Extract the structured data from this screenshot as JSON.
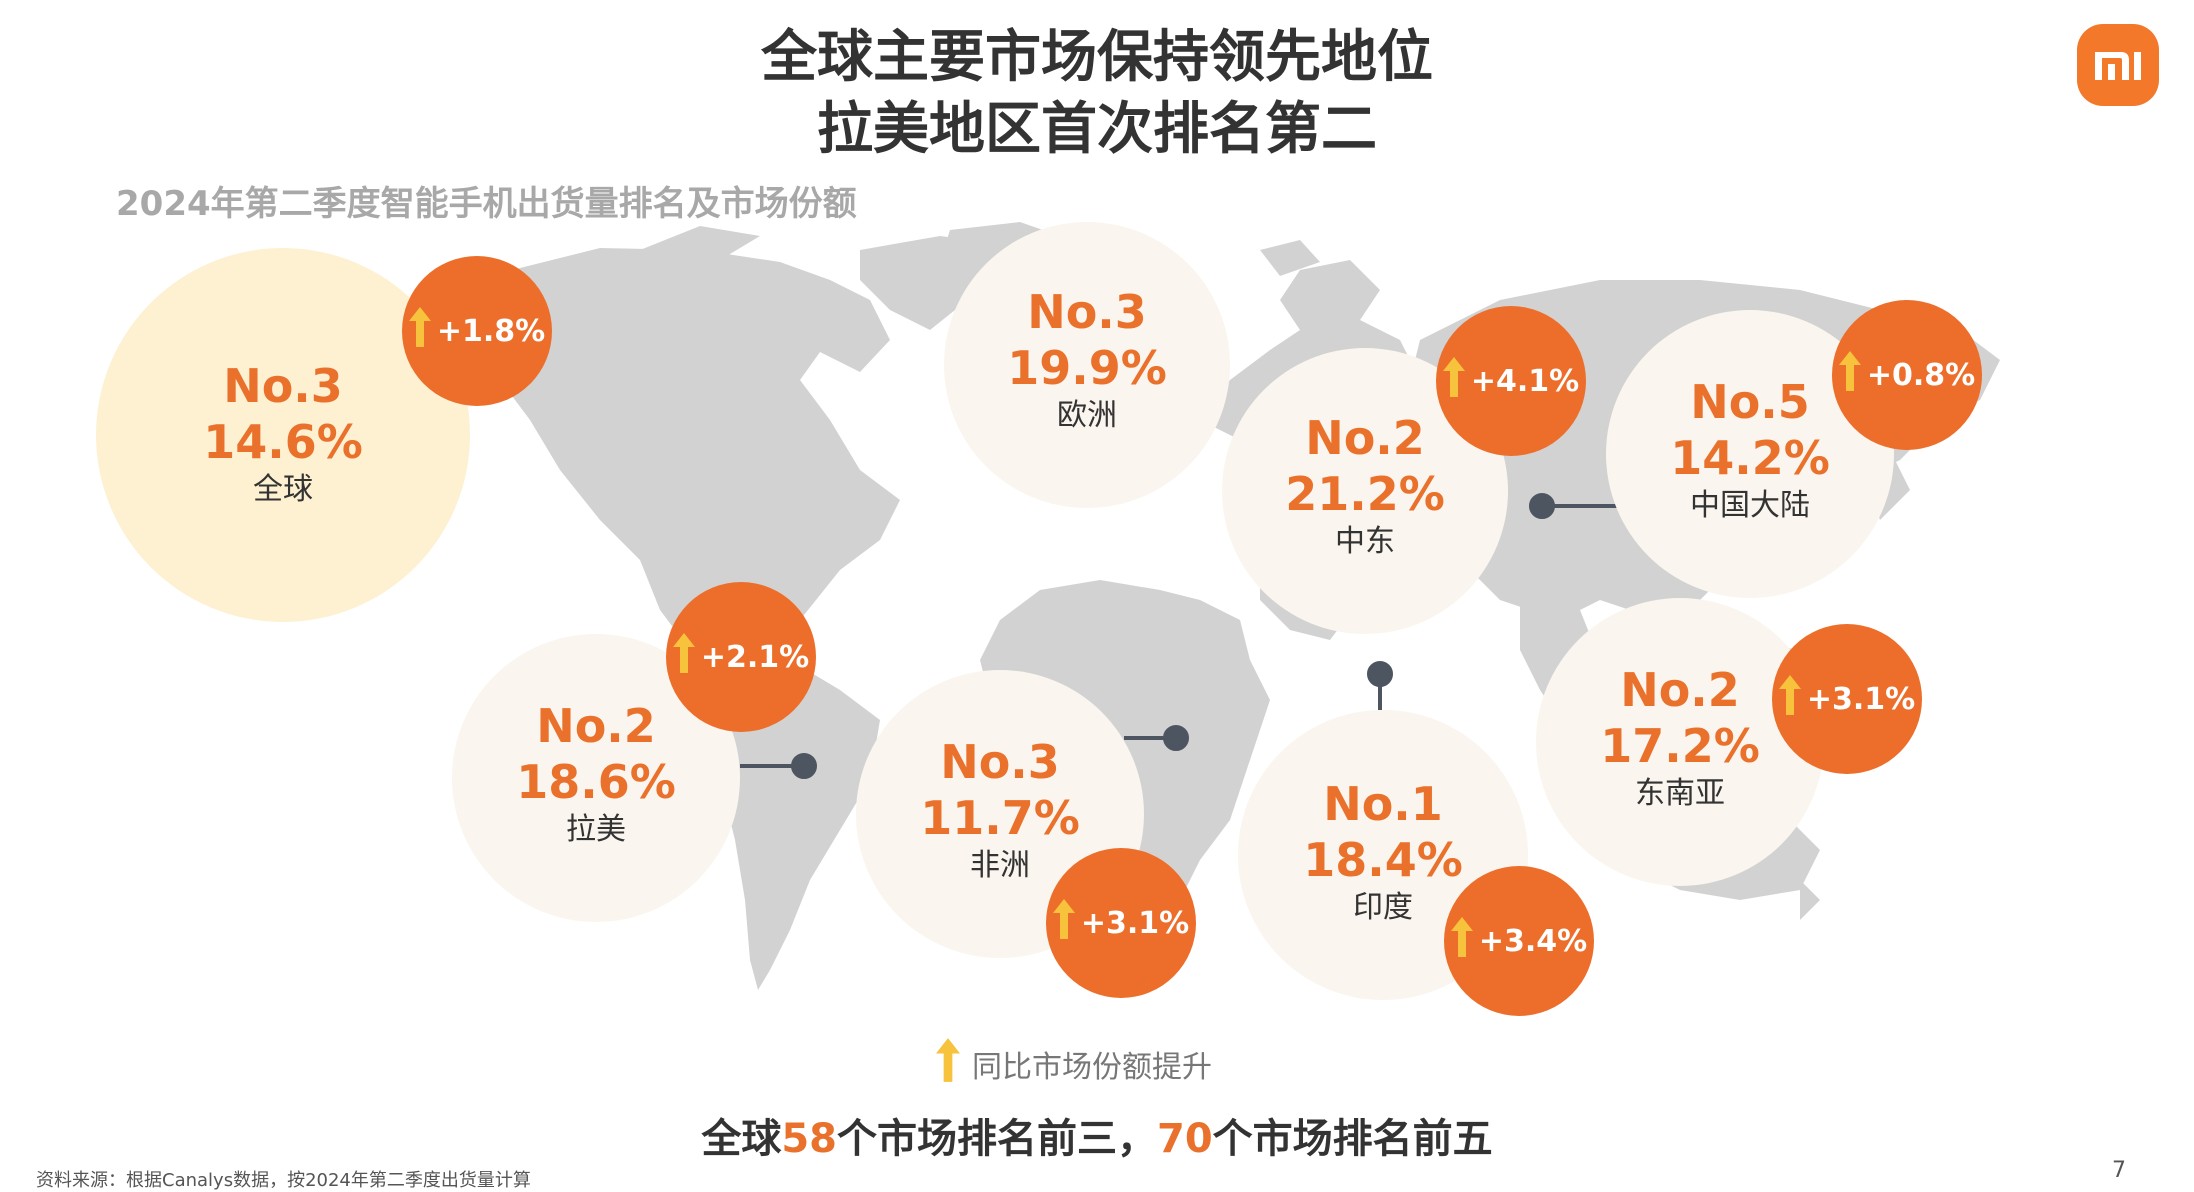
{
  "title_line1": "全球主要市场保持领先地位",
  "title_line2": "拉美地区首次排名第二",
  "subtitle": "2024年第二季度智能手机出货量排名及市场份额",
  "colors": {
    "accent": "#ec6e2a",
    "rank_text": "#e9712b",
    "arrow": "#f7c23c",
    "bubble": "#faf5ee",
    "global_bubble": "#fdf1d2",
    "map": "#d2d2d2"
  },
  "markets": [
    {
      "id": "global",
      "rank": "No.3",
      "share": "14.6%",
      "region": "全球",
      "change": "+1.8%"
    },
    {
      "id": "europe",
      "rank": "No.3",
      "share": "19.9%",
      "region": "欧洲",
      "change": ""
    },
    {
      "id": "middle_east",
      "rank": "No.2",
      "share": "21.2%",
      "region": "中东",
      "change": "+4.1%"
    },
    {
      "id": "china",
      "rank": "No.5",
      "share": "14.2%",
      "region": "中国大陆",
      "change": "+0.8%"
    },
    {
      "id": "latam",
      "rank": "No.2",
      "share": "18.6%",
      "region": "拉美",
      "change": "+2.1%"
    },
    {
      "id": "africa",
      "rank": "No.3",
      "share": "11.7%",
      "region": "非洲",
      "change": "+3.1%"
    },
    {
      "id": "india",
      "rank": "No.1",
      "share": "18.4%",
      "region": "印度",
      "change": "+3.4%"
    },
    {
      "id": "sea",
      "rank": "No.2",
      "share": "17.2%",
      "region": "东南亚",
      "change": "+3.1%"
    }
  ],
  "legend": {
    "icon": "up-arrow-icon",
    "label": "同比市场份额提升"
  },
  "footer": {
    "part1": "全球",
    "num1": "58",
    "part2": "个市场排名前三，",
    "num2": "70",
    "part3": "个市场排名前五"
  },
  "source": "资料来源：根据Canalys数据，按2024年第二季度出货量计算",
  "page_number": "7"
}
